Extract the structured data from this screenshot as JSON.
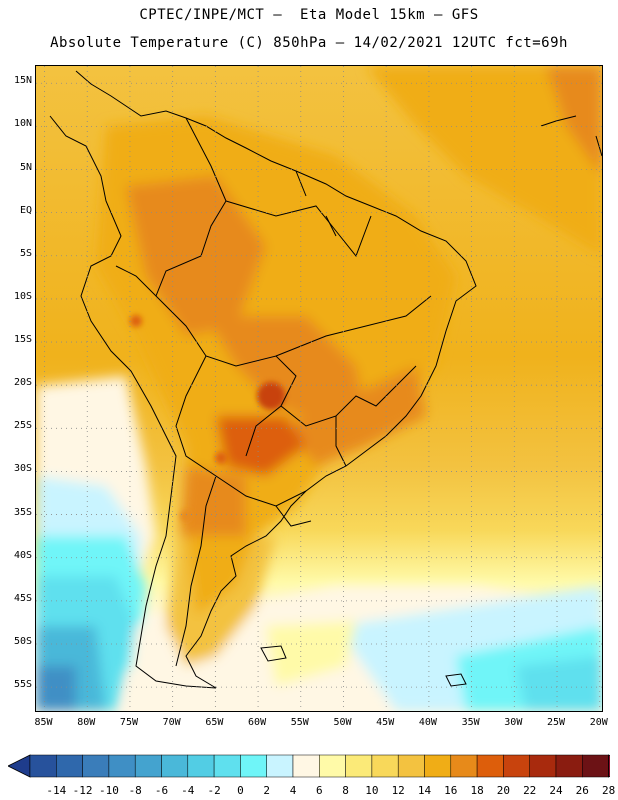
{
  "header": {
    "line1": "CPTEC/INPE/MCT –  Eta Model 15km – GFS",
    "line2": "Absolute Temperature (C) 850hPa – 14/02/2021 12UTC fct=69h"
  },
  "map": {
    "lat_labels": [
      "15N",
      "10N",
      "5N",
      "EQ",
      "5S",
      "10S",
      "15S",
      "20S",
      "25S",
      "30S",
      "35S",
      "40S",
      "45S",
      "50S",
      "55S"
    ],
    "lat_values": [
      15,
      10,
      5,
      0,
      -5,
      -10,
      -15,
      -20,
      -25,
      -30,
      -35,
      -40,
      -45,
      -50,
      -55
    ],
    "lon_labels": [
      "85W",
      "80W",
      "75W",
      "70W",
      "65W",
      "60W",
      "55W",
      "50W",
      "45W",
      "40W",
      "35W",
      "30W",
      "25W",
      "20W"
    ],
    "lon_values": [
      -85,
      -80,
      -75,
      -70,
      -65,
      -60,
      -55,
      -50,
      -45,
      -40,
      -35,
      -30,
      -25,
      -20
    ],
    "extent": {
      "lon_min": -86,
      "lon_max": -19.5,
      "lat_min": -58,
      "lat_max": 17
    }
  },
  "colorbar": {
    "labels": [
      "-14",
      "-12",
      "-10",
      "-8",
      "-6",
      "-4",
      "-2",
      "0",
      "2",
      "4",
      "6",
      "8",
      "10",
      "12",
      "14",
      "16",
      "18",
      "20",
      "22",
      "24",
      "26",
      "28"
    ],
    "colors": [
      "#1e3c8c",
      "#27529c",
      "#2f68ac",
      "#3a7dba",
      "#3f8fc5",
      "#44a3cf",
      "#4ab8d9",
      "#52cde4",
      "#5fe0ee",
      "#6ff5f8",
      "#c9f4ff",
      "#fff7e4",
      "#fffaa8",
      "#fbea78",
      "#f8d85a",
      "#f3c240",
      "#f0ad16",
      "#e78a1a",
      "#dd5e0b",
      "#c8430d",
      "#a82a0d",
      "#8a1c10",
      "#6c1215",
      "#5b0a10"
    ],
    "left_arrow_color": "#1e3c8c",
    "right_arrow_color": "#8b0a2a"
  }
}
